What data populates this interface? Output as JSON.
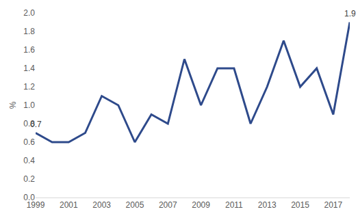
{
  "chart_data": {
    "type": "line",
    "y_label": "%",
    "x": [
      1999,
      2000,
      2001,
      2002,
      2003,
      2004,
      2005,
      2006,
      2007,
      2008,
      2009,
      2010,
      2011,
      2012,
      2013,
      2014,
      2015,
      2016,
      2017,
      2018
    ],
    "values": [
      0.7,
      0.6,
      0.6,
      0.7,
      1.1,
      1.0,
      0.6,
      0.9,
      0.8,
      1.5,
      1.0,
      1.4,
      1.4,
      0.8,
      1.2,
      1.7,
      1.2,
      1.4,
      0.9,
      1.9
    ],
    "color": "#2e4a8b",
    "xlim": [
      1999,
      2018
    ],
    "xticks": [
      1999,
      2001,
      2003,
      2005,
      2007,
      2009,
      2011,
      2013,
      2015,
      2017
    ],
    "ylim": [
      0,
      2
    ],
    "yticks": [
      {
        "value": 0,
        "label": "0.0"
      },
      0.2,
      0.4,
      0.6,
      0.8,
      {
        "value": 1,
        "label": "1.0"
      },
      1.2,
      1.4,
      1.6,
      1.8,
      {
        "value": 2,
        "label": "2.0"
      }
    ],
    "annotations": [
      {
        "x": 1999,
        "y": 0.7,
        "text": "0.7"
      },
      {
        "x": 2018,
        "y": 1.9,
        "text": "1.9"
      }
    ],
    "grid": false
  }
}
